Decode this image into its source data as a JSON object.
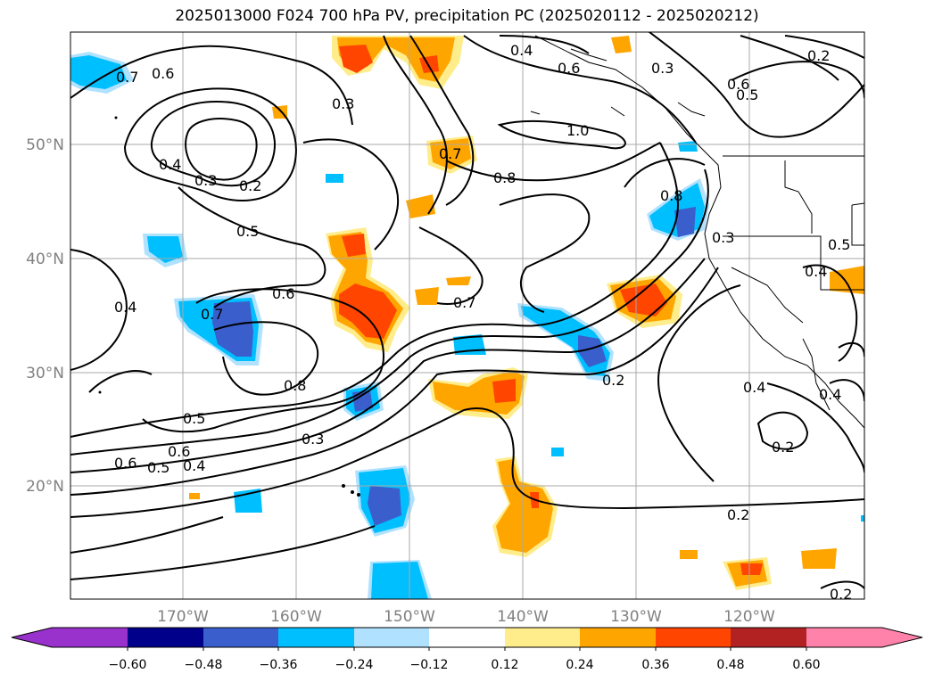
{
  "title": "2025013000 F024 700 hPa PV, precipitation PC (2025020112 - 2025020212)",
  "lat_labels": [
    "50°N",
    "40°N",
    "30°N",
    "20°N"
  ],
  "lon_labels": [
    "170°W",
    "160°W",
    "150°W",
    "140°W",
    "130°W",
    "120°W"
  ],
  "contour_labels": [
    "0.7",
    "0.6",
    "0.4",
    "0.3",
    "0.2",
    "0.5",
    "0.6",
    "0.7",
    "0.8",
    "0.4",
    "0.5",
    "0.6",
    "0.5",
    "0.4",
    "0.6",
    "0.3",
    "0.7",
    "0.8",
    "1.0",
    "0.6",
    "0.4",
    "0.3",
    "0.3",
    "0.6",
    "0.5",
    "0.2",
    "0.7",
    "0.8",
    "0.3",
    "0.4",
    "0.5",
    "0.2",
    "0.4",
    "0.2",
    "0.2",
    "0.4",
    "0.2"
  ],
  "colorbar": {
    "ticks": [
      "−0.60",
      "−0.48",
      "−0.36",
      "−0.24",
      "−0.12",
      "0.12",
      "0.24",
      "0.36",
      "0.48",
      "0.60"
    ],
    "colors": [
      "#9932cc",
      "#00008b",
      "#3a5fcd",
      "#00bfff",
      "#b0e2ff",
      "#ffffff",
      "#ffec8b",
      "#ffa500",
      "#ff4500",
      "#b22222",
      "#ff82ab"
    ]
  }
}
